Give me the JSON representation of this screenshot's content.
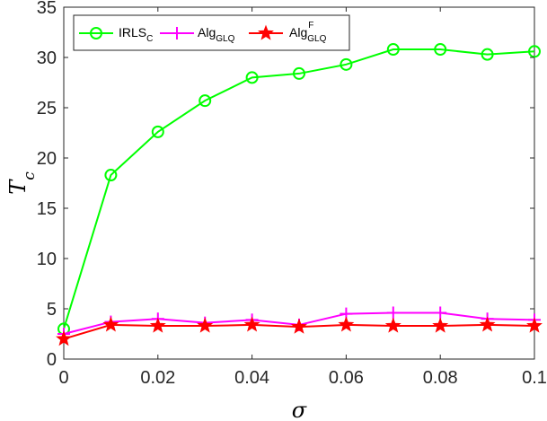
{
  "chart_data": {
    "type": "line",
    "xlabel": "σ",
    "ylabel": "T_c",
    "xlim": [
      0,
      0.1
    ],
    "ylim": [
      0,
      35
    ],
    "x_ticks": [
      "0",
      "0.02",
      "0.04",
      "0.06",
      "0.08",
      "0.1"
    ],
    "y_ticks": [
      "0",
      "5",
      "10",
      "15",
      "20",
      "25",
      "30",
      "35"
    ],
    "grid": false,
    "legend_position": "top-left",
    "x": [
      0,
      0.01,
      0.02,
      0.03,
      0.04,
      0.05,
      0.06,
      0.07,
      0.08,
      0.09,
      0.1
    ],
    "series": [
      {
        "name": "IRLS_C",
        "legend": {
          "base": "IRLS",
          "sub": "C",
          "sup": ""
        },
        "color": "#00ff00",
        "marker": "circle",
        "values": [
          3.0,
          18.3,
          22.6,
          25.7,
          28.0,
          28.4,
          29.3,
          30.8,
          30.8,
          30.3,
          30.6
        ]
      },
      {
        "name": "Alg_GLQ",
        "legend": {
          "base": "Alg",
          "sub": "GLQ",
          "sup": ""
        },
        "color": "#ff00ff",
        "marker": "plus",
        "values": [
          2.5,
          3.7,
          4.0,
          3.6,
          3.9,
          3.4,
          4.5,
          4.6,
          4.6,
          4.0,
          3.9
        ]
      },
      {
        "name": "Alg_GLQ^F",
        "legend": {
          "base": "Alg",
          "sub": "GLQ",
          "sup": "F"
        },
        "color": "#ff0000",
        "marker": "star",
        "values": [
          2.0,
          3.4,
          3.3,
          3.3,
          3.4,
          3.2,
          3.4,
          3.3,
          3.3,
          3.4,
          3.3
        ]
      }
    ]
  }
}
